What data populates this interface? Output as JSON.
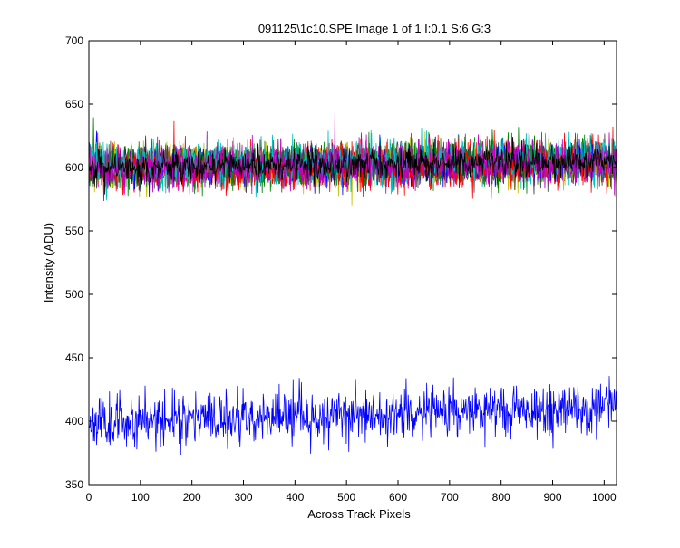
{
  "chart_data": {
    "type": "line",
    "title": "091125\\1c10.SPE  Image 1 of 1  I:0.1  S:6  G:3",
    "xlabel": "Across Track Pixels",
    "ylabel": "Intensity (ADU)",
    "xlim": [
      0,
      1024
    ],
    "ylim": [
      350,
      700
    ],
    "xticks": [
      0,
      100,
      200,
      300,
      400,
      500,
      600,
      700,
      800,
      900,
      1000
    ],
    "yticks": [
      350,
      400,
      450,
      500,
      550,
      600,
      650,
      700
    ],
    "grid": false,
    "legend": "none",
    "point_count": 1024,
    "series": [
      {
        "color": "#0000ff",
        "mean": 400,
        "trend": 10,
        "noise": 10,
        "seed": 11
      },
      {
        "color": "#008000",
        "mean": 600,
        "trend": 4,
        "noise": 8,
        "seed": 23
      },
      {
        "color": "#ff0000",
        "mean": 600,
        "trend": 4,
        "noise": 8,
        "seed": 37
      },
      {
        "color": "#00bfbf",
        "mean": 601,
        "trend": 4,
        "noise": 8,
        "seed": 41
      },
      {
        "color": "#bf00bf",
        "mean": 600,
        "trend": 4,
        "noise": 8,
        "seed": 53
      },
      {
        "color": "#bfbf00",
        "mean": 600,
        "trend": 4,
        "noise": 8,
        "seed": 67
      },
      {
        "color": "#404040",
        "mean": 600,
        "trend": 4,
        "noise": 8,
        "seed": 79
      },
      {
        "color": "#0000ff",
        "mean": 600,
        "trend": 4,
        "noise": 7,
        "seed": 83
      },
      {
        "color": "#008000",
        "mean": 601,
        "trend": 4,
        "noise": 8,
        "seed": 97
      },
      {
        "color": "#ff0000",
        "mean": 599,
        "trend": 4,
        "noise": 8,
        "seed": 101
      },
      {
        "color": "#00bfbf",
        "mean": 602,
        "trend": 4,
        "noise": 8,
        "seed": 113
      },
      {
        "color": "#bf00bf",
        "mean": 600,
        "trend": 4,
        "noise": 8,
        "seed": 127
      },
      {
        "color": "#000000",
        "mean": 600,
        "trend": 5,
        "noise": 6,
        "seed": 131
      }
    ]
  }
}
